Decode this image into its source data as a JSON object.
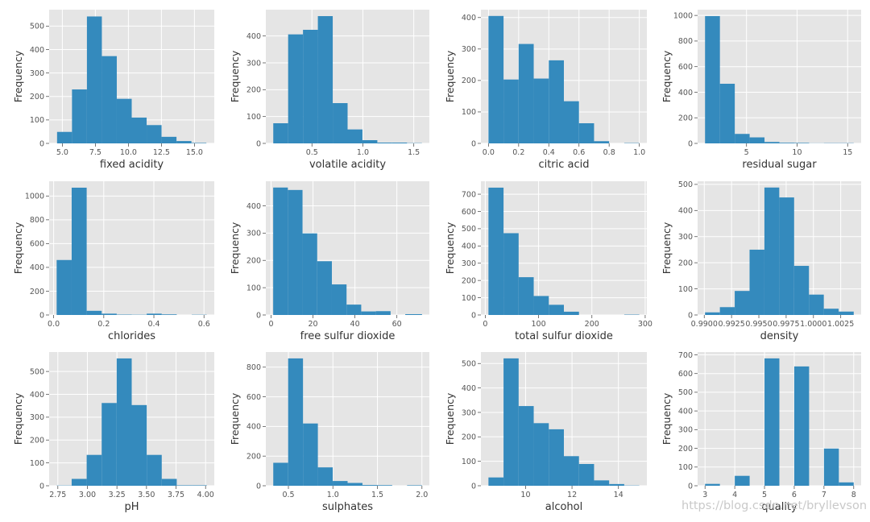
{
  "watermark": "https://blog.csdn.net/bryllevson",
  "chart_data": [
    {
      "type": "bar",
      "title": "",
      "xlabel": "fixed acidity",
      "ylabel": "Frequency",
      "bin_edges": [
        4.6,
        5.73,
        6.86,
        7.99,
        9.12,
        10.25,
        11.38,
        12.51,
        13.64,
        14.77,
        15.9
      ],
      "values": [
        49,
        230,
        541,
        372,
        190,
        110,
        78,
        28,
        10,
        2
      ],
      "xlim": [
        4.0,
        16.5
      ],
      "ylim": [
        0,
        570
      ],
      "xticks": [
        5.0,
        7.5,
        10.0,
        12.5,
        15.0
      ],
      "xtick_labels": [
        "5.0",
        "7.5",
        "10.0",
        "12.5",
        "15.0"
      ],
      "yticks": [
        0,
        100,
        200,
        300,
        400,
        500
      ],
      "ytick_labels": [
        "0",
        "100",
        "200",
        "300",
        "400",
        "500"
      ]
    },
    {
      "type": "bar",
      "title": "",
      "xlabel": "volatile acidity",
      "ylabel": "Frequency",
      "bin_edges": [
        0.12,
        0.266,
        0.412,
        0.558,
        0.704,
        0.85,
        0.996,
        1.142,
        1.288,
        1.434,
        1.58
      ],
      "values": [
        75,
        406,
        423,
        474,
        150,
        52,
        12,
        3,
        3,
        1
      ],
      "xlim": [
        0.047,
        1.653
      ],
      "ylim": [
        0,
        498
      ],
      "xticks": [
        0.5,
        1.0,
        1.5
      ],
      "xtick_labels": [
        "0.5",
        "1.0",
        "1.5"
      ],
      "yticks": [
        0,
        100,
        200,
        300,
        400
      ],
      "ytick_labels": [
        "0",
        "100",
        "200",
        "300",
        "400"
      ]
    },
    {
      "type": "bar",
      "title": "",
      "xlabel": "citric acid",
      "ylabel": "Frequency",
      "bin_edges": [
        0.0,
        0.1,
        0.2,
        0.3,
        0.4,
        0.5,
        0.6,
        0.7,
        0.8,
        0.9,
        1.0
      ],
      "values": [
        405,
        203,
        316,
        206,
        264,
        134,
        64,
        7,
        0,
        1
      ],
      "xlim": [
        -0.05,
        1.05
      ],
      "ylim": [
        0,
        425
      ],
      "xticks": [
        0.0,
        0.2,
        0.4,
        0.6,
        0.8,
        1.0
      ],
      "xtick_labels": [
        "0.0",
        "0.2",
        "0.4",
        "0.6",
        "0.8",
        "1.0"
      ],
      "yticks": [
        0,
        100,
        200,
        300,
        400
      ],
      "ytick_labels": [
        "0",
        "100",
        "200",
        "300",
        "400"
      ]
    },
    {
      "type": "bar",
      "title": "",
      "xlabel": "residual sugar",
      "ylabel": "Frequency",
      "bin_edges": [
        0.9,
        2.37,
        3.84,
        5.31,
        6.78,
        8.25,
        9.72,
        11.19,
        12.66,
        14.13,
        15.6
      ],
      "values": [
        995,
        466,
        74,
        47,
        11,
        5,
        4,
        1,
        2,
        2
      ],
      "xlim": [
        0.165,
        16.335
      ],
      "ylim": [
        0,
        1045
      ],
      "xticks": [
        5,
        10,
        15
      ],
      "xtick_labels": [
        "5",
        "10",
        "15"
      ],
      "yticks": [
        0,
        200,
        400,
        600,
        800,
        1000
      ],
      "ytick_labels": [
        "0",
        "200",
        "400",
        "600",
        "800",
        "1000"
      ]
    },
    {
      "type": "bar",
      "title": "",
      "xlabel": "chlorides",
      "ylabel": "Frequency",
      "bin_edges": [
        0.012,
        0.0719,
        0.1318,
        0.1917,
        0.2516,
        0.3115,
        0.3714,
        0.4313,
        0.4912,
        0.5511,
        0.611
      ],
      "values": [
        462,
        1070,
        35,
        11,
        3,
        2,
        11,
        5,
        0,
        2
      ],
      "xlim": [
        -0.018,
        0.641
      ],
      "ylim": [
        0,
        1124
      ],
      "xticks": [
        0.0,
        0.2,
        0.4,
        0.6
      ],
      "xtick_labels": [
        "0.0",
        "0.2",
        "0.4",
        "0.6"
      ],
      "yticks": [
        0,
        200,
        400,
        600,
        800,
        1000
      ],
      "ytick_labels": [
        "0",
        "200",
        "400",
        "600",
        "800",
        "1000"
      ]
    },
    {
      "type": "bar",
      "title": "",
      "xlabel": "free sulfur dioxide",
      "ylabel": "Frequency",
      "bin_edges": [
        1,
        8,
        15,
        22,
        29,
        36,
        43,
        50,
        57,
        64,
        72
      ],
      "values": [
        467,
        458,
        299,
        197,
        112,
        38,
        13,
        14,
        0,
        3
      ],
      "xlim": [
        -2.5,
        75.5
      ],
      "ylim": [
        0,
        490
      ],
      "xticks": [
        0,
        20,
        40,
        60
      ],
      "xtick_labels": [
        "0",
        "20",
        "40",
        "60"
      ],
      "yticks": [
        0,
        100,
        200,
        300,
        400
      ],
      "ytick_labels": [
        "0",
        "100",
        "200",
        "300",
        "400"
      ]
    },
    {
      "type": "bar",
      "title": "",
      "xlabel": "total sulfur dioxide",
      "ylabel": "Frequency",
      "bin_edges": [
        6,
        34.3,
        62.6,
        90.9,
        119.2,
        147.5,
        175.8,
        204.1,
        232.4,
        260.7,
        289
      ],
      "values": [
        738,
        474,
        219,
        110,
        59,
        19,
        0,
        0,
        0,
        2
      ],
      "xlim": [
        -8.15,
        303.15
      ],
      "ylim": [
        0,
        775
      ],
      "xticks": [
        0,
        100,
        200,
        300
      ],
      "xtick_labels": [
        "0",
        "100",
        "200",
        "300"
      ],
      "yticks": [
        0,
        100,
        200,
        300,
        400,
        500,
        600,
        700
      ],
      "ytick_labels": [
        "0",
        "100",
        "200",
        "300",
        "400",
        "500",
        "600",
        "700"
      ]
    },
    {
      "type": "bar",
      "title": "",
      "xlabel": "density",
      "ylabel": "Frequency",
      "bin_edges": [
        0.99007,
        0.99143,
        0.99279,
        0.99415,
        0.99551,
        0.99687,
        0.99823,
        0.99959,
        1.00095,
        1.00231,
        1.00369
      ],
      "values": [
        10,
        30,
        92,
        250,
        488,
        450,
        188,
        78,
        24,
        13
      ],
      "xlim": [
        0.98939,
        1.00437
      ],
      "ylim": [
        0,
        512
      ],
      "xticks": [
        0.99,
        0.9925,
        0.995,
        0.9975,
        1.0,
        1.0025
      ],
      "xtick_labels": [
        "0.9900",
        "0.9925",
        "0.9950",
        "0.9975",
        "1.0000",
        "1.0025"
      ],
      "yticks": [
        0,
        100,
        200,
        300,
        400,
        500
      ],
      "ytick_labels": [
        "0",
        "100",
        "200",
        "300",
        "400",
        "500"
      ]
    },
    {
      "type": "bar",
      "title": "",
      "xlabel": "pH",
      "ylabel": "Frequency",
      "bin_edges": [
        2.74,
        2.867,
        2.994,
        3.121,
        3.248,
        3.375,
        3.502,
        3.629,
        3.756,
        3.883,
        4.01
      ],
      "values": [
        1,
        30,
        135,
        362,
        557,
        353,
        135,
        30,
        2,
        2
      ],
      "xlim": [
        2.6765,
        4.0735
      ],
      "ylim": [
        0,
        585
      ],
      "xticks": [
        2.75,
        3.0,
        3.25,
        3.5,
        3.75,
        4.0
      ],
      "xtick_labels": [
        "2.75",
        "3.00",
        "3.25",
        "3.50",
        "3.75",
        "4.00"
      ],
      "yticks": [
        0,
        100,
        200,
        300,
        400,
        500
      ],
      "ytick_labels": [
        "0",
        "100",
        "200",
        "300",
        "400",
        "500"
      ]
    },
    {
      "type": "bar",
      "title": "",
      "xlabel": "sulphates",
      "ylabel": "Frequency",
      "bin_edges": [
        0.33,
        0.497,
        0.664,
        0.831,
        0.998,
        1.165,
        1.332,
        1.499,
        1.666,
        1.833,
        2.0
      ],
      "values": [
        155,
        859,
        420,
        124,
        32,
        19,
        5,
        4,
        0,
        3
      ],
      "xlim": [
        0.2465,
        2.0835
      ],
      "ylim": [
        0,
        902
      ],
      "xticks": [
        0.5,
        1.0,
        1.5,
        2.0
      ],
      "xtick_labels": [
        "0.5",
        "1.0",
        "1.5",
        "2.0"
      ],
      "yticks": [
        0,
        200,
        400,
        600,
        800
      ],
      "ytick_labels": [
        "0",
        "200",
        "400",
        "600",
        "800"
      ]
    },
    {
      "type": "bar",
      "title": "",
      "xlabel": "alcohol",
      "ylabel": "Frequency",
      "bin_edges": [
        8.4,
        9.05,
        9.7,
        10.35,
        11.0,
        11.65,
        12.3,
        12.95,
        13.6,
        14.25,
        14.9
      ],
      "values": [
        34,
        521,
        326,
        256,
        231,
        121,
        89,
        22,
        7,
        1
      ],
      "xlim": [
        8.075,
        15.225
      ],
      "ylim": [
        0,
        547
      ],
      "xticks": [
        10,
        12,
        14
      ],
      "xtick_labels": [
        "10",
        "12",
        "14"
      ],
      "yticks": [
        0,
        100,
        200,
        300,
        400,
        500
      ],
      "ytick_labels": [
        "0",
        "100",
        "200",
        "300",
        "400",
        "500"
      ]
    },
    {
      "type": "bar",
      "title": "",
      "xlabel": "quality",
      "ylabel": "Frequency",
      "bin_edges": [
        3.0,
        3.5,
        4.0,
        4.5,
        5.0,
        5.5,
        6.0,
        6.5,
        7.0,
        7.5,
        8.0
      ],
      "values": [
        10,
        0,
        53,
        0,
        681,
        0,
        638,
        0,
        199,
        18
      ],
      "xlim": [
        2.75,
        8.25
      ],
      "ylim": [
        0,
        715
      ],
      "xticks": [
        3,
        4,
        5,
        6,
        7,
        8
      ],
      "xtick_labels": [
        "3",
        "4",
        "5",
        "6",
        "7",
        "8"
      ],
      "yticks": [
        0,
        100,
        200,
        300,
        400,
        500,
        600,
        700
      ],
      "ytick_labels": [
        "0",
        "100",
        "200",
        "300",
        "400",
        "500",
        "600",
        "700"
      ]
    }
  ]
}
